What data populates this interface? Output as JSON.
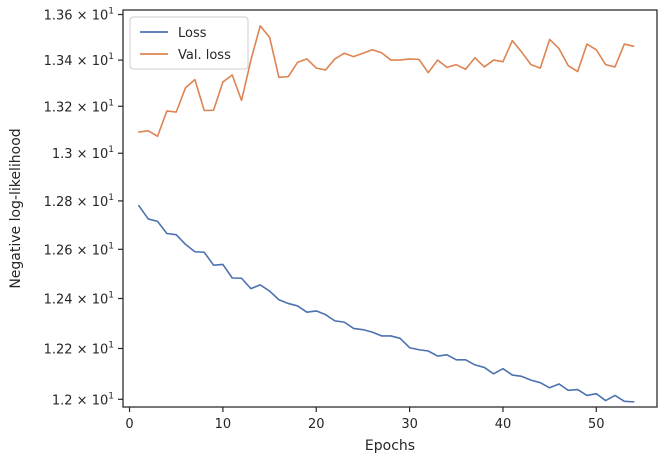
{
  "chart_data": {
    "type": "line",
    "xlabel": "Epochs",
    "ylabel": "Negative log-likelihood",
    "yscale": "log",
    "xlim": [
      -0.7,
      56.5
    ],
    "ylim": [
      11.97,
      13.62
    ],
    "xticks": [
      0,
      10,
      20,
      30,
      40,
      50
    ],
    "xtick_labels": [
      "0",
      "10",
      "20",
      "30",
      "40",
      "50"
    ],
    "yticks": [
      12.0,
      12.2,
      12.4,
      12.6,
      12.8,
      13.0,
      13.2,
      13.4,
      13.6
    ],
    "ytick_labels": [
      {
        "mantissa": "1.2",
        "base": "10",
        "exp": "1"
      },
      {
        "mantissa": "1.22",
        "base": "10",
        "exp": "1"
      },
      {
        "mantissa": "1.24",
        "base": "10",
        "exp": "1"
      },
      {
        "mantissa": "1.26",
        "base": "10",
        "exp": "1"
      },
      {
        "mantissa": "1.28",
        "base": "10",
        "exp": "1"
      },
      {
        "mantissa": "1.3",
        "base": "10",
        "exp": "1"
      },
      {
        "mantissa": "1.32",
        "base": "10",
        "exp": "1"
      },
      {
        "mantissa": "1.34",
        "base": "10",
        "exp": "1"
      },
      {
        "mantissa": "1.36",
        "base": "10",
        "exp": "1"
      }
    ],
    "grid": false,
    "legend_position": "top-left",
    "x": [
      1,
      2,
      3,
      4,
      5,
      6,
      7,
      8,
      9,
      10,
      11,
      12,
      13,
      14,
      15,
      16,
      17,
      18,
      19,
      20,
      21,
      22,
      23,
      24,
      25,
      26,
      27,
      28,
      29,
      30,
      31,
      32,
      33,
      34,
      35,
      36,
      37,
      38,
      39,
      40,
      41,
      42,
      43,
      44,
      45,
      46,
      47,
      48,
      49,
      50,
      51,
      52,
      53,
      54
    ],
    "series": [
      {
        "name": "Loss",
        "color": "#4c72b0",
        "values": [
          12.78,
          12.725,
          12.715,
          12.665,
          12.66,
          12.62,
          12.59,
          12.588,
          12.535,
          12.538,
          12.483,
          12.482,
          12.44,
          12.455,
          12.43,
          12.395,
          12.38,
          12.37,
          12.345,
          12.35,
          12.335,
          12.31,
          12.305,
          12.28,
          12.275,
          12.265,
          12.25,
          12.25,
          12.24,
          12.203,
          12.195,
          12.19,
          12.17,
          12.175,
          12.155,
          12.155,
          12.135,
          12.125,
          12.1,
          12.12,
          12.095,
          12.09,
          12.075,
          12.065,
          12.045,
          12.06,
          12.035,
          12.038,
          12.015,
          12.022,
          11.995,
          12.015,
          11.992,
          11.99
        ]
      },
      {
        "name": "Val. loss",
        "color": "#dd8452",
        "values": [
          13.09,
          13.095,
          13.072,
          13.18,
          13.175,
          13.28,
          13.315,
          13.182,
          13.183,
          13.305,
          13.335,
          13.225,
          13.4,
          13.55,
          13.5,
          13.325,
          13.328,
          13.39,
          13.405,
          13.365,
          13.357,
          13.405,
          13.43,
          13.415,
          13.43,
          13.445,
          13.432,
          13.4,
          13.4,
          13.405,
          13.403,
          13.345,
          13.4,
          13.368,
          13.38,
          13.36,
          13.41,
          13.37,
          13.4,
          13.393,
          13.485,
          13.435,
          13.38,
          13.365,
          13.49,
          13.45,
          13.375,
          13.35,
          13.47,
          13.445,
          13.38,
          13.37,
          13.47,
          13.46
        ]
      }
    ]
  }
}
